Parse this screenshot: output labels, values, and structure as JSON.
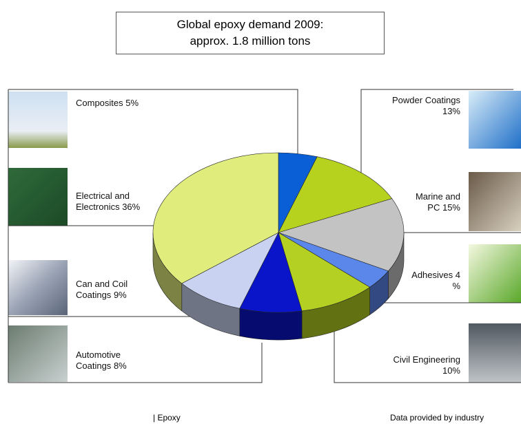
{
  "chart_data": {
    "type": "pie",
    "title": "Global epoxy demand 2009:",
    "subtitle": "approx. 1.8 million tons",
    "categories": [
      "Composites",
      "Powder Coatings",
      "Marine and PC",
      "Adhesives",
      "Civil Engineering",
      "Automotive Coatings",
      "Can and Coil Coatings",
      "Electrical and Electronics"
    ],
    "values": [
      5,
      13,
      15,
      4,
      10,
      8,
      9,
      36
    ],
    "value_labels": [
      "5%",
      "13%",
      "15%",
      "4 %",
      "10%",
      "8%",
      "9%",
      "36%"
    ],
    "colors": [
      "#0b5fd6",
      "#b6d11e",
      "#c3c3c3",
      "#5b87ea",
      "#b3d023",
      "#0a15c9",
      "#c9d3f1",
      "#e0ed7c"
    ],
    "legend_text": "| Epoxy",
    "source": "Data provided by industry"
  }
}
